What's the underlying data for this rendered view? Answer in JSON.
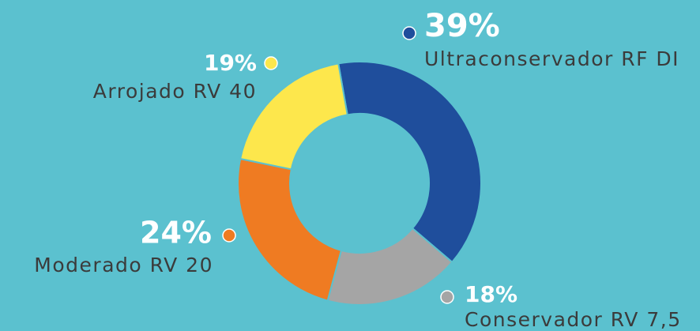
{
  "chart_data": {
    "type": "donut",
    "categories": [
      "Ultraconservador RF DI",
      "Conservador RV 7,5",
      "Moderado RV 20",
      "Arrojado RV 40"
    ],
    "values": [
      39,
      18,
      24,
      19
    ],
    "value_labels": [
      "39%",
      "18%",
      "24%",
      "19%"
    ],
    "colors": [
      "#1f4e9c",
      "#a5a5a5",
      "#ef7b22",
      "#fde74c"
    ]
  }
}
